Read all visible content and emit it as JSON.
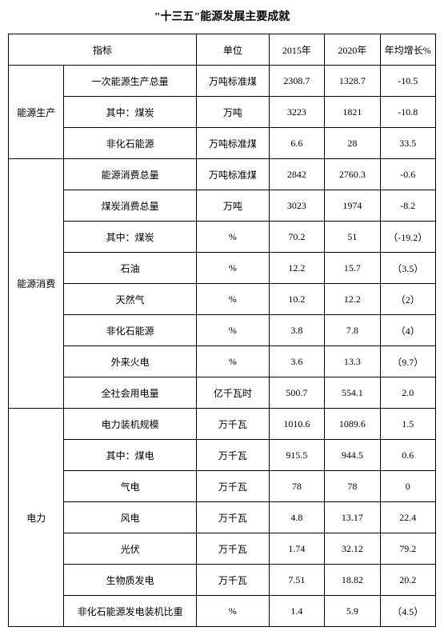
{
  "title": "\"十三五\"能源发展主要成就",
  "headers": {
    "indicator": "指标",
    "unit": "单位",
    "y2015": "2015年",
    "y2020": "2020年",
    "growth": "年均增长%"
  },
  "groups": [
    {
      "name": "能源生产",
      "rows": [
        {
          "ind": "一次能源生产总量",
          "unit": "万吨标准煤",
          "v15": "2308.7",
          "v20": "1328.7",
          "g": "-10.5"
        },
        {
          "ind": "其中：煤炭",
          "unit": "万吨",
          "v15": "3223",
          "v20": "1821",
          "g": "-10.8"
        },
        {
          "ind": "非化石能源",
          "unit": "万吨标准煤",
          "v15": "6.6",
          "v20": "28",
          "g": "33.5"
        }
      ]
    },
    {
      "name": "能源消费",
      "rows": [
        {
          "ind": "能源消费总量",
          "unit": "万吨标准煤",
          "v15": "2842",
          "v20": "2760.3",
          "g": "-0.6"
        },
        {
          "ind": "煤炭消费总量",
          "unit": "万吨",
          "v15": "3023",
          "v20": "1974",
          "g": "-8.2"
        },
        {
          "ind": "其中：煤炭",
          "unit": "%",
          "v15": "70.2",
          "v20": "51",
          "g": "（-19.2）"
        },
        {
          "ind": "石油",
          "unit": "%",
          "v15": "12.2",
          "v20": "15.7",
          "g": "（3.5）"
        },
        {
          "ind": "天然气",
          "unit": "%",
          "v15": "10.2",
          "v20": "12.2",
          "g": "（2）"
        },
        {
          "ind": "非化石能源",
          "unit": "%",
          "v15": "3.8",
          "v20": "7.8",
          "g": "（4）"
        },
        {
          "ind": "外来火电",
          "unit": "%",
          "v15": "3.6",
          "v20": "13.3",
          "g": "（9.7）"
        },
        {
          "ind": "全社会用电量",
          "unit": "亿千瓦时",
          "v15": "500.7",
          "v20": "554.1",
          "g": "2.0"
        }
      ]
    },
    {
      "name": "电力",
      "rows": [
        {
          "ind": "电力装机规模",
          "unit": "万千瓦",
          "v15": "1010.6",
          "v20": "1089.6",
          "g": "1.5"
        },
        {
          "ind": "其中：煤电",
          "unit": "万千瓦",
          "v15": "915.5",
          "v20": "944.5",
          "g": "0.6"
        },
        {
          "ind": "气电",
          "unit": "万千瓦",
          "v15": "78",
          "v20": "78",
          "g": "0"
        },
        {
          "ind": "风电",
          "unit": "万千瓦",
          "v15": "4.8",
          "v20": "13.17",
          "g": "22.4"
        },
        {
          "ind": "光伏",
          "unit": "万千瓦",
          "v15": "1.74",
          "v20": "32.12",
          "g": "79.2"
        },
        {
          "ind": "生物质发电",
          "unit": "万千瓦",
          "v15": "7.51",
          "v20": "18.82",
          "g": "20.2"
        },
        {
          "ind": "非化石能源发电装机比重",
          "unit": "%",
          "v15": "1.4",
          "v20": "5.9",
          "g": "（4.5）"
        }
      ]
    }
  ]
}
